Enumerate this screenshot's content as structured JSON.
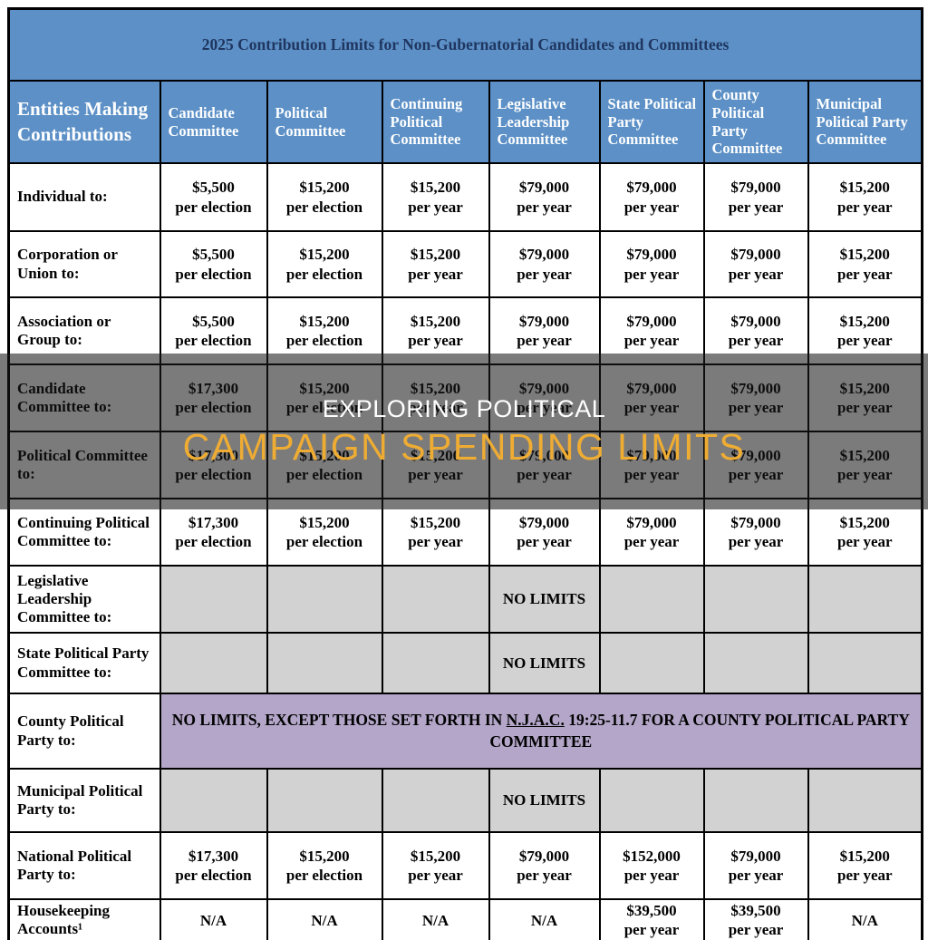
{
  "title": "2025 Contribution Limits for Non-Gubernatorial Candidates and Committees",
  "header": {
    "row_header": "Entities Making Contributions",
    "columns": [
      "Candidate Committee",
      "Political Committee",
      "Continuing Political Committee",
      "Legislative Leadership Committee",
      "State Political Party Committee",
      "County Political Party Committee",
      "Municipal Political Party Committee"
    ]
  },
  "rows": [
    {
      "label": "Individual to:",
      "style": "white",
      "cells": [
        "$5,500\nper election",
        "$15,200\nper election",
        "$15,200\nper year",
        "$79,000\nper year",
        "$79,000\nper year",
        "$79,000\nper year",
        "$15,200\nper year"
      ]
    },
    {
      "label": "Corporation or Union to:",
      "style": "white",
      "cells": [
        "$5,500\nper election",
        "$15,200\nper election",
        "$15,200\nper year",
        "$79,000\nper year",
        "$79,000\nper year",
        "$79,000\nper year",
        "$15,200\nper year"
      ]
    },
    {
      "label": "Association or Group to:",
      "style": "white",
      "cells": [
        "$5,500\nper election",
        "$15,200\nper election",
        "$15,200\nper year",
        "$79,000\nper year",
        "$79,000\nper year",
        "$79,000\nper year",
        "$15,200\nper year"
      ]
    },
    {
      "label": "Candidate Committee to:",
      "style": "white",
      "cells": [
        "$17,300\nper election",
        "$15,200\nper election",
        "$15,200\nper year",
        "$79,000\nper year",
        "$79,000\nper year",
        "$79,000\nper year",
        "$15,200\nper year"
      ]
    },
    {
      "label": "Political Committee to:",
      "style": "white",
      "cells": [
        "$17,300\nper election",
        "$15,200\nper election",
        "$15,200\nper year",
        "$79,000\nper year",
        "$79,000\nper year",
        "$79,000\nper year",
        "$15,200\nper year"
      ]
    },
    {
      "label": "Continuing Political Committee to:",
      "style": "white",
      "cells": [
        "$17,300\nper election",
        "$15,200\nper election",
        "$15,200\nper year",
        "$79,000\nper year",
        "$79,000\nper year",
        "$79,000\nper year",
        "$15,200\nper year"
      ]
    },
    {
      "label": "Legislative Leadership Committee to:",
      "style": "gray",
      "cells": [
        "",
        "",
        "",
        "NO LIMITS",
        "",
        "",
        ""
      ]
    },
    {
      "label": "State Political Party Committee to:",
      "style": "gray",
      "cells": [
        "",
        "",
        "",
        "NO LIMITS",
        "",
        "",
        ""
      ]
    },
    {
      "label": "County Political Party to:",
      "style": "merged",
      "note": {
        "pre": "NO LIMITS, EXCEPT THOSE SET FORTH IN ",
        "underline": "N.J.A.C.",
        "post": " 19:25-11.7 FOR A COUNTY POLITICAL PARTY COMMITTEE"
      }
    },
    {
      "label": "Municipal Political Party to:",
      "style": "gray",
      "cells": [
        "",
        "",
        "",
        "NO LIMITS",
        "",
        "",
        ""
      ]
    },
    {
      "label": "National Political Party to:",
      "style": "white",
      "cells": [
        "$17,300\nper election",
        "$15,200\nper election",
        "$15,200\nper year",
        "$79,000\nper year",
        "$152,000\nper year",
        "$79,000\nper year",
        "$15,200\nper year"
      ]
    },
    {
      "label": "Housekeeping Accounts¹",
      "style": "white",
      "cells": [
        "N/A",
        "N/A",
        "N/A",
        "N/A",
        "$39,500\nper year",
        "$39,500\nper year",
        "N/A"
      ]
    }
  ],
  "overlay": {
    "line1": "EXPLORING POLITICAL",
    "line2": "CAMPAIGN SPENDING LIMITS"
  },
  "colors": {
    "header_blue": "#5C90C6",
    "title_navy": "#1F3660",
    "empty_cell_gray": "#D2D2D2",
    "county_note_purple": "#B3A6C8",
    "banner_orange": "#EFAC33",
    "banner_overlay": "rgba(22,22,22,0.57)"
  }
}
